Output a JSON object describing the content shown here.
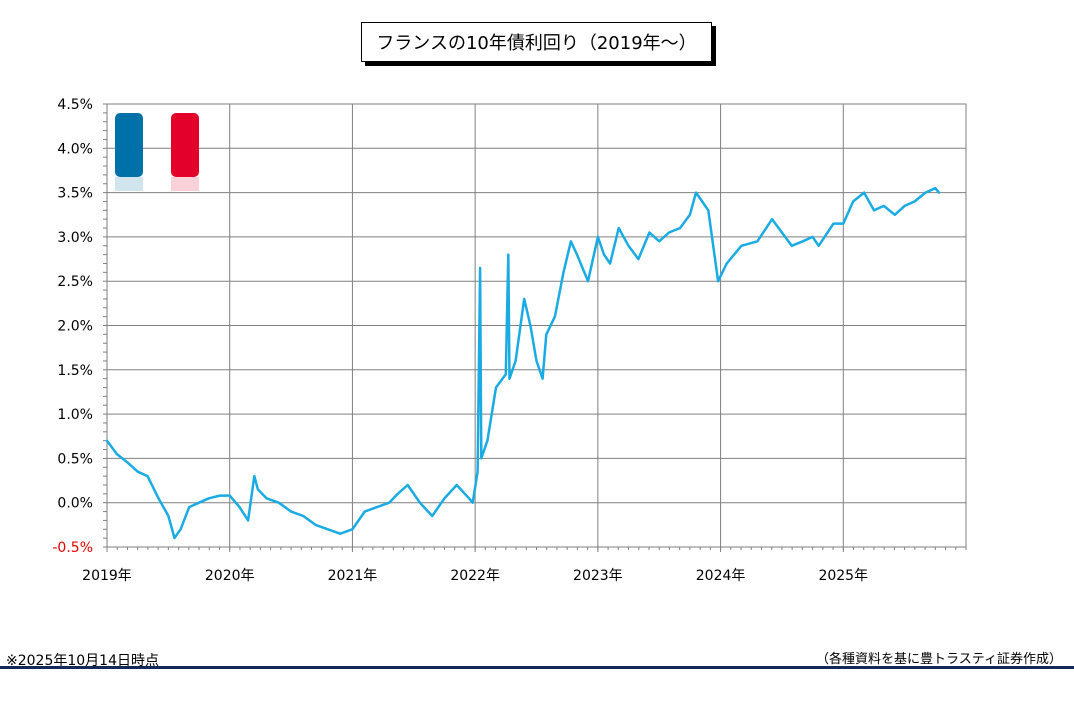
{
  "chart_data": {
    "type": "line",
    "title": "フランスの10年債利回り（2019年～）",
    "x_tick_labels": [
      "2019年",
      "2020年",
      "2021年",
      "2022年",
      "2023年",
      "2024年",
      "2025年"
    ],
    "y_tick_labels": [
      "4.5%",
      "4.0%",
      "3.5%",
      "3.0%",
      "2.5%",
      "2.0%",
      "1.5%",
      "1.0%",
      "0.5%",
      "0.0%",
      "-0.5%"
    ],
    "ylim": [
      -0.5,
      4.5
    ],
    "xlim": [
      2019.0,
      2026.0
    ],
    "grid": true,
    "series": [
      {
        "color": "#1aabe3",
        "x": [
          2019.0,
          2019.08,
          2019.17,
          2019.25,
          2019.33,
          2019.42,
          2019.5,
          2019.55,
          2019.6,
          2019.67,
          2019.75,
          2019.83,
          2019.92,
          2020.0,
          2020.08,
          2020.15,
          2020.2,
          2020.23,
          2020.3,
          2020.4,
          2020.5,
          2020.6,
          2020.7,
          2020.8,
          2020.9,
          2021.0,
          2021.1,
          2021.2,
          2021.3,
          2021.37,
          2021.45,
          2021.55,
          2021.65,
          2021.75,
          2021.85,
          2021.95,
          2021.98,
          2022.02,
          2022.04,
          2022.05,
          2022.1,
          2022.17,
          2022.25,
          2022.27,
          2022.28,
          2022.33,
          2022.4,
          2022.45,
          2022.5,
          2022.55,
          2022.58,
          2022.65,
          2022.72,
          2022.78,
          2022.83,
          2022.92,
          2023.0,
          2023.05,
          2023.1,
          2023.17,
          2023.25,
          2023.33,
          2023.42,
          2023.5,
          2023.58,
          2023.67,
          2023.75,
          2023.8,
          2023.9,
          2023.98,
          2024.05,
          2024.17,
          2024.3,
          2024.42,
          2024.5,
          2024.58,
          2024.67,
          2024.75,
          2024.8,
          2024.92,
          2025.0,
          2025.08,
          2025.17,
          2025.25,
          2025.33,
          2025.42,
          2025.5,
          2025.58,
          2025.67,
          2025.75,
          2025.78
        ],
        "y": [
          0.7,
          0.55,
          0.45,
          0.35,
          0.3,
          0.05,
          -0.15,
          -0.4,
          -0.3,
          -0.05,
          0.0,
          0.05,
          0.08,
          0.08,
          -0.05,
          -0.2,
          0.3,
          0.15,
          0.05,
          0.0,
          -0.1,
          -0.15,
          -0.25,
          -0.3,
          -0.35,
          -0.3,
          -0.1,
          -0.05,
          0.0,
          0.1,
          0.2,
          0.0,
          -0.15,
          0.05,
          0.2,
          0.05,
          0.0,
          0.35,
          2.65,
          0.5,
          0.7,
          1.3,
          1.45,
          2.8,
          1.4,
          1.6,
          2.3,
          2.0,
          1.6,
          1.4,
          1.9,
          2.1,
          2.6,
          2.95,
          2.8,
          2.5,
          3.0,
          2.8,
          2.7,
          3.1,
          2.9,
          2.75,
          3.05,
          2.95,
          3.05,
          3.1,
          3.25,
          3.5,
          3.3,
          2.5,
          2.7,
          2.9,
          2.95,
          3.2,
          3.05,
          2.9,
          2.95,
          3.0,
          2.9,
          3.15,
          3.15,
          3.4,
          3.5,
          3.3,
          3.35,
          3.25,
          3.35,
          3.4,
          3.5,
          3.55,
          3.5
        ]
      }
    ]
  },
  "footnote": "※2025年10月14日時点",
  "source": "（各種資料を基に豊トラスティ証券作成）",
  "flag": {
    "blue": "#0070a8",
    "red": "#e3002b"
  }
}
